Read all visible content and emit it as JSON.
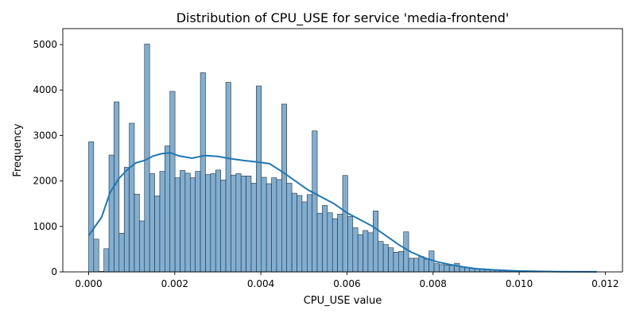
{
  "chart_data": {
    "type": "bar",
    "chart_kind": "histogram",
    "title": "Distribution of CPU_USE for service 'media-frontend'",
    "xlabel": "CPU_USE value",
    "ylabel": "Frequency",
    "xlim": [
      -0.0006,
      0.0124
    ],
    "ylim": [
      0,
      5350
    ],
    "x_ticks": [
      0.0,
      0.002,
      0.004,
      0.006,
      0.008,
      0.01,
      0.012
    ],
    "x_tick_labels": [
      "0.000",
      "0.002",
      "0.004",
      "0.006",
      "0.008",
      "0.010",
      "0.012"
    ],
    "y_ticks": [
      0,
      1000,
      2000,
      3000,
      4000,
      5000
    ],
    "y_tick_labels": [
      "0",
      "1000",
      "2000",
      "3000",
      "4000",
      "5000"
    ],
    "bin_width": 0.000118,
    "bins_start": 0.0,
    "bars": {
      "name": "Frequency",
      "color": "#82aed0",
      "values": [
        2860,
        720,
        10,
        510,
        2570,
        3740,
        850,
        2300,
        3270,
        1710,
        1120,
        5010,
        2160,
        1670,
        2210,
        2770,
        3970,
        2070,
        2230,
        2170,
        2070,
        2210,
        4380,
        2140,
        2160,
        2240,
        2020,
        4170,
        2130,
        2160,
        2110,
        2110,
        1950,
        4090,
        2080,
        1940,
        2070,
        2030,
        3690,
        1950,
        1730,
        1680,
        1540,
        1700,
        3100,
        1290,
        1460,
        1300,
        1170,
        1270,
        2120,
        1220,
        970,
        820,
        910,
        860,
        1340,
        670,
        600,
        530,
        430,
        450,
        880,
        300,
        300,
        340,
        280,
        460,
        180,
        160,
        150,
        140,
        190,
        110,
        90,
        80,
        70,
        70,
        60,
        50,
        50,
        40,
        30,
        30,
        25,
        20,
        15,
        15,
        10,
        10,
        8,
        6,
        5,
        4,
        3,
        3,
        2,
        2,
        2,
        1,
        1
      ]
    },
    "kde": {
      "color": "#1f77b4",
      "x": [
        0.0,
        0.0003,
        0.0005,
        0.0007,
        0.0009,
        0.0011,
        0.0013,
        0.0015,
        0.0017,
        0.0019,
        0.0021,
        0.0024,
        0.0027,
        0.003,
        0.0033,
        0.0036,
        0.0039,
        0.0042,
        0.0045,
        0.0048,
        0.0051,
        0.0054,
        0.0057,
        0.006,
        0.0063,
        0.0066,
        0.0069,
        0.0072,
        0.0075,
        0.0078,
        0.0081,
        0.0084,
        0.0087,
        0.009,
        0.0095,
        0.01,
        0.0105,
        0.011,
        0.0118
      ],
      "y": [
        800,
        1200,
        1750,
        2050,
        2250,
        2400,
        2450,
        2550,
        2600,
        2620,
        2550,
        2500,
        2560,
        2540,
        2490,
        2450,
        2420,
        2380,
        2200,
        2000,
        1800,
        1650,
        1500,
        1300,
        1150,
        1000,
        800,
        600,
        430,
        310,
        220,
        160,
        110,
        70,
        40,
        20,
        10,
        5,
        2
      ]
    }
  }
}
